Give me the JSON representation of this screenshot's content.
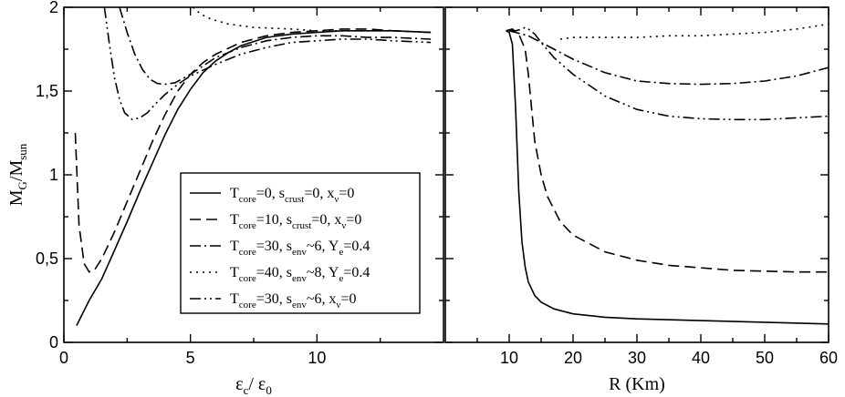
{
  "chart_data": [
    {
      "type": "line",
      "panel": "left",
      "xlabel": {
        "main": "ε",
        "sub": "c",
        "sep": "/ ",
        "main2": "ε",
        "sub2": "0"
      },
      "ylabel": {
        "main": "M",
        "sub": "G",
        "sep": "/M",
        "sub2": "sun"
      },
      "xlim": [
        0,
        15
      ],
      "ylim": [
        0,
        2
      ],
      "x_ticks": [
        0,
        5,
        10
      ],
      "x_tick_labels": [
        "0",
        "5",
        "10"
      ],
      "y_ticks": [
        0,
        0.5,
        1,
        1.5,
        2
      ],
      "y_tick_labels": [
        "0",
        "0,5",
        "1",
        "1,5",
        "2"
      ],
      "series": [
        {
          "style": "solid",
          "x": [
            0.5,
            1,
            1.5,
            2,
            2.5,
            3,
            3.5,
            4,
            4.5,
            5,
            5.5,
            6,
            6.5,
            7,
            8,
            9,
            10,
            11,
            12,
            13,
            14.5
          ],
          "y": [
            0.1,
            0.25,
            0.38,
            0.55,
            0.72,
            0.9,
            1.07,
            1.24,
            1.39,
            1.51,
            1.61,
            1.68,
            1.73,
            1.77,
            1.82,
            1.84,
            1.85,
            1.86,
            1.86,
            1.86,
            1.85
          ]
        },
        {
          "style": "dashed",
          "x": [
            0.45,
            0.6,
            0.8,
            1.0,
            1.2,
            1.5,
            2,
            2.5,
            3,
            3.5,
            4,
            4.5,
            5,
            5.5,
            6,
            7,
            8,
            9,
            10,
            11,
            12,
            13,
            14.5
          ],
          "y": [
            1.25,
            0.7,
            0.47,
            0.42,
            0.43,
            0.5,
            0.66,
            0.84,
            1.02,
            1.2,
            1.36,
            1.5,
            1.6,
            1.67,
            1.72,
            1.79,
            1.83,
            1.85,
            1.86,
            1.87,
            1.87,
            1.86,
            1.85
          ]
        },
        {
          "style": "dash-dot",
          "x": [
            2.2,
            2.5,
            2.8,
            3.1,
            3.4,
            3.7,
            4.0,
            4.4,
            5,
            5.5,
            6,
            7,
            8,
            9,
            10,
            11,
            12,
            13,
            14.5
          ],
          "y": [
            2.0,
            1.85,
            1.72,
            1.63,
            1.57,
            1.545,
            1.54,
            1.55,
            1.6,
            1.65,
            1.7,
            1.76,
            1.8,
            1.82,
            1.83,
            1.83,
            1.82,
            1.82,
            1.81
          ]
        },
        {
          "style": "dotted",
          "x": [
            5.1,
            5.4,
            5.8,
            6.5,
            7.5,
            9,
            10,
            11,
            12,
            13,
            14.5
          ],
          "y": [
            2.0,
            1.96,
            1.93,
            1.9,
            1.88,
            1.87,
            1.86,
            1.86,
            1.86,
            1.86,
            1.85
          ]
        },
        {
          "style": "dash-dot-dot",
          "x": [
            1.6,
            1.8,
            2.0,
            2.2,
            2.4,
            2.7,
            3.0,
            3.3,
            3.6,
            4.0,
            4.5,
            5,
            6,
            7,
            8,
            9,
            10,
            11,
            12,
            13,
            14.5
          ],
          "y": [
            2.0,
            1.78,
            1.58,
            1.45,
            1.37,
            1.33,
            1.34,
            1.37,
            1.42,
            1.48,
            1.54,
            1.59,
            1.66,
            1.72,
            1.76,
            1.79,
            1.8,
            1.81,
            1.81,
            1.8,
            1.79
          ]
        }
      ],
      "legend": {
        "placement": "lower-right",
        "entries": [
          {
            "style": "solid",
            "parts": [
              [
                "T",
                ""
              ],
              [
                "core",
                "sub"
              ],
              [
                "=0, s",
                ""
              ],
              [
                "crust",
                "sub"
              ],
              [
                "=0, x",
                ""
              ],
              [
                "ν",
                "sub"
              ],
              [
                "=0",
                ""
              ]
            ]
          },
          {
            "style": "dashed",
            "parts": [
              [
                "T",
                ""
              ],
              [
                "core",
                "sub"
              ],
              [
                "=10, s",
                ""
              ],
              [
                "crust",
                "sub"
              ],
              [
                "=0, x",
                ""
              ],
              [
                "ν",
                "sub"
              ],
              [
                "=0",
                ""
              ]
            ]
          },
          {
            "style": "dash-dot",
            "parts": [
              [
                "T",
                ""
              ],
              [
                "core",
                "sub"
              ],
              [
                "=30, s",
                ""
              ],
              [
                "env",
                "sub"
              ],
              [
                "~6, Y",
                ""
              ],
              [
                "e",
                "sub"
              ],
              [
                "=0.4",
                ""
              ]
            ]
          },
          {
            "style": "dotted",
            "parts": [
              [
                "T",
                ""
              ],
              [
                "core",
                "sub"
              ],
              [
                "=40, s",
                ""
              ],
              [
                "env",
                "sub"
              ],
              [
                "~8, Y",
                ""
              ],
              [
                "e",
                "sub"
              ],
              [
                "=0.4",
                ""
              ]
            ]
          },
          {
            "style": "dash-dot-dot",
            "parts": [
              [
                "T",
                ""
              ],
              [
                "core",
                "sub"
              ],
              [
                "=30, s",
                ""
              ],
              [
                "env",
                "sub"
              ],
              [
                "~6, x",
                ""
              ],
              [
                "ν",
                "sub"
              ],
              [
                "=0",
                ""
              ]
            ]
          }
        ]
      }
    },
    {
      "type": "line",
      "panel": "right",
      "xlabel": {
        "main": "R (Km)"
      },
      "xlim": [
        0,
        60
      ],
      "ylim": [
        0,
        2
      ],
      "x_ticks": [
        10,
        20,
        30,
        40,
        50,
        60
      ],
      "x_tick_labels": [
        "10",
        "20",
        "30",
        "40",
        "50",
        "60"
      ],
      "y_ticks": [
        0,
        0.5,
        1,
        1.5,
        2
      ],
      "series": [
        {
          "style": "solid",
          "x": [
            9.5,
            10,
            10.5,
            11,
            11.5,
            12,
            12.5,
            13,
            14,
            15,
            17,
            20,
            25,
            30,
            40,
            50,
            60
          ],
          "y": [
            1.86,
            1.85,
            1.78,
            1.4,
            0.9,
            0.6,
            0.45,
            0.36,
            0.28,
            0.24,
            0.2,
            0.17,
            0.15,
            0.14,
            0.13,
            0.12,
            0.11
          ]
        },
        {
          "style": "dashed",
          "x": [
            9.5,
            10.5,
            11.5,
            12.5,
            13,
            13.5,
            14,
            15,
            16,
            18,
            20,
            25,
            30,
            35,
            40,
            45,
            50,
            55,
            60
          ],
          "y": [
            1.86,
            1.87,
            1.84,
            1.75,
            1.6,
            1.4,
            1.2,
            1.0,
            0.87,
            0.72,
            0.64,
            0.54,
            0.49,
            0.46,
            0.445,
            0.43,
            0.425,
            0.42,
            0.42
          ]
        },
        {
          "style": "dash-dot",
          "x": [
            10,
            11,
            12,
            13,
            14,
            15,
            17,
            20,
            25,
            30,
            35,
            40,
            45,
            50,
            55,
            60
          ],
          "y": [
            1.86,
            1.85,
            1.84,
            1.83,
            1.81,
            1.79,
            1.75,
            1.69,
            1.61,
            1.56,
            1.545,
            1.54,
            1.545,
            1.56,
            1.59,
            1.64
          ]
        },
        {
          "style": "dotted",
          "x": [
            18,
            20,
            25,
            30,
            35,
            40,
            45,
            50,
            55,
            60
          ],
          "y": [
            1.81,
            1.82,
            1.82,
            1.82,
            1.83,
            1.83,
            1.84,
            1.85,
            1.87,
            1.9
          ]
        },
        {
          "style": "dash-dot-dot",
          "x": [
            10,
            11,
            12,
            12.5,
            13,
            14,
            15,
            17,
            20,
            25,
            30,
            35,
            40,
            45,
            50,
            55,
            60
          ],
          "y": [
            1.86,
            1.86,
            1.87,
            1.88,
            1.87,
            1.84,
            1.79,
            1.7,
            1.6,
            1.47,
            1.39,
            1.35,
            1.335,
            1.33,
            1.33,
            1.34,
            1.35
          ]
        }
      ]
    }
  ]
}
